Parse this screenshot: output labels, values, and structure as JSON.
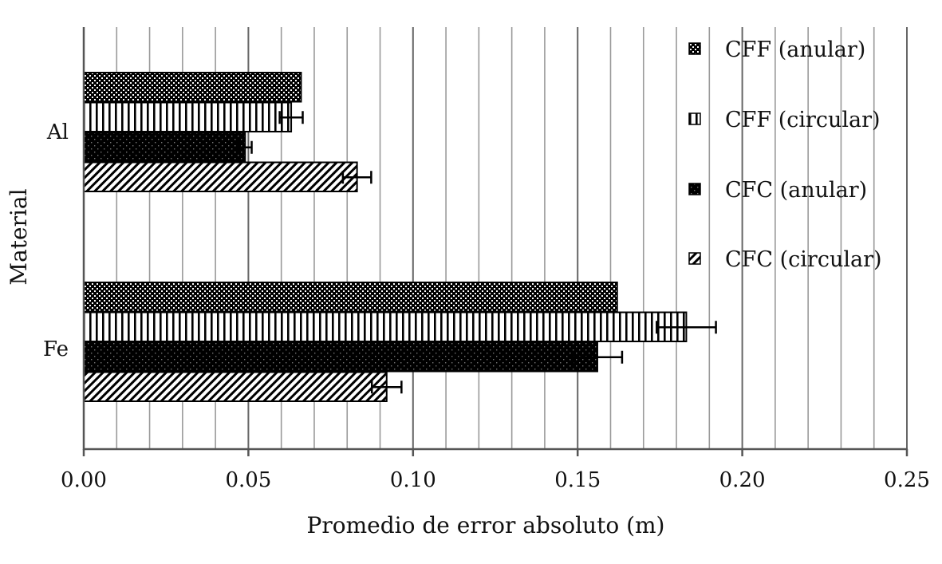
{
  "chart_data": {
    "type": "bar",
    "orientation": "horizontal",
    "title": "",
    "xlabel": "Promedio de error absoluto (m)",
    "ylabel": "Material",
    "xlim": [
      0,
      0.25
    ],
    "x_major_ticks": [
      "0.00",
      "0.05",
      "0.10",
      "0.15",
      "0.20",
      "0.25"
    ],
    "x_minor_step": 0.01,
    "grid": "vertical, major every 0.05 and minor every 0.01",
    "legend_position": "upper right inside plot",
    "categories": [
      "Al",
      "Fe"
    ],
    "series": [
      {
        "name": "CFF (anular)",
        "pattern": "dotted-checker",
        "values": [
          0.066,
          0.162
        ],
        "errors": [
          null,
          null
        ]
      },
      {
        "name": "CFF (circular)",
        "pattern": "vertical-stripes",
        "values": [
          0.063,
          0.183
        ],
        "errors": [
          0.0035,
          0.009
        ]
      },
      {
        "name": "CFC (anular)",
        "pattern": "dense-black-dots",
        "values": [
          0.049,
          0.156
        ],
        "errors": [
          0.002,
          0.0075
        ]
      },
      {
        "name": "CFC (circular)",
        "pattern": "diagonal-stripes",
        "values": [
          0.083,
          0.092
        ],
        "errors": [
          0.0043,
          0.0045
        ]
      }
    ]
  },
  "colors": {
    "bar_ink": "#000000",
    "axis": "#555555",
    "major_grid": "#666666",
    "minor_grid": "#9a9a9a",
    "background": "#ffffff"
  }
}
